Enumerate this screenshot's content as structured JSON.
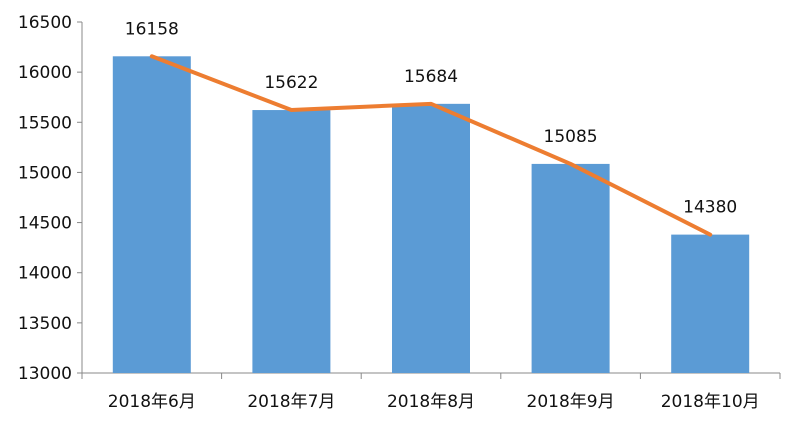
{
  "chart_data": {
    "type": "bar",
    "categories": [
      "2018年6月",
      "2018年7月",
      "2018年8月",
      "2018年9月",
      "2018年10月"
    ],
    "values": [
      16158,
      15622,
      15684,
      15085,
      14380
    ],
    "overlay_line": true,
    "data_labels": [
      "16158",
      "15622",
      "15684",
      "15085",
      "14380"
    ],
    "title": "",
    "xlabel": "",
    "ylabel": "",
    "ylim": [
      13000,
      16500
    ],
    "yticks": [
      13000,
      13500,
      14000,
      14500,
      15000,
      15500,
      16000,
      16500
    ],
    "ytick_labels": [
      "13000",
      "13500",
      "14000",
      "14500",
      "15000",
      "15500",
      "16000",
      "16500"
    ],
    "grid": false,
    "legend": "none",
    "colors": {
      "bar": "#5b9bd5",
      "line": "#ed7d31",
      "axis": "#888888"
    }
  }
}
